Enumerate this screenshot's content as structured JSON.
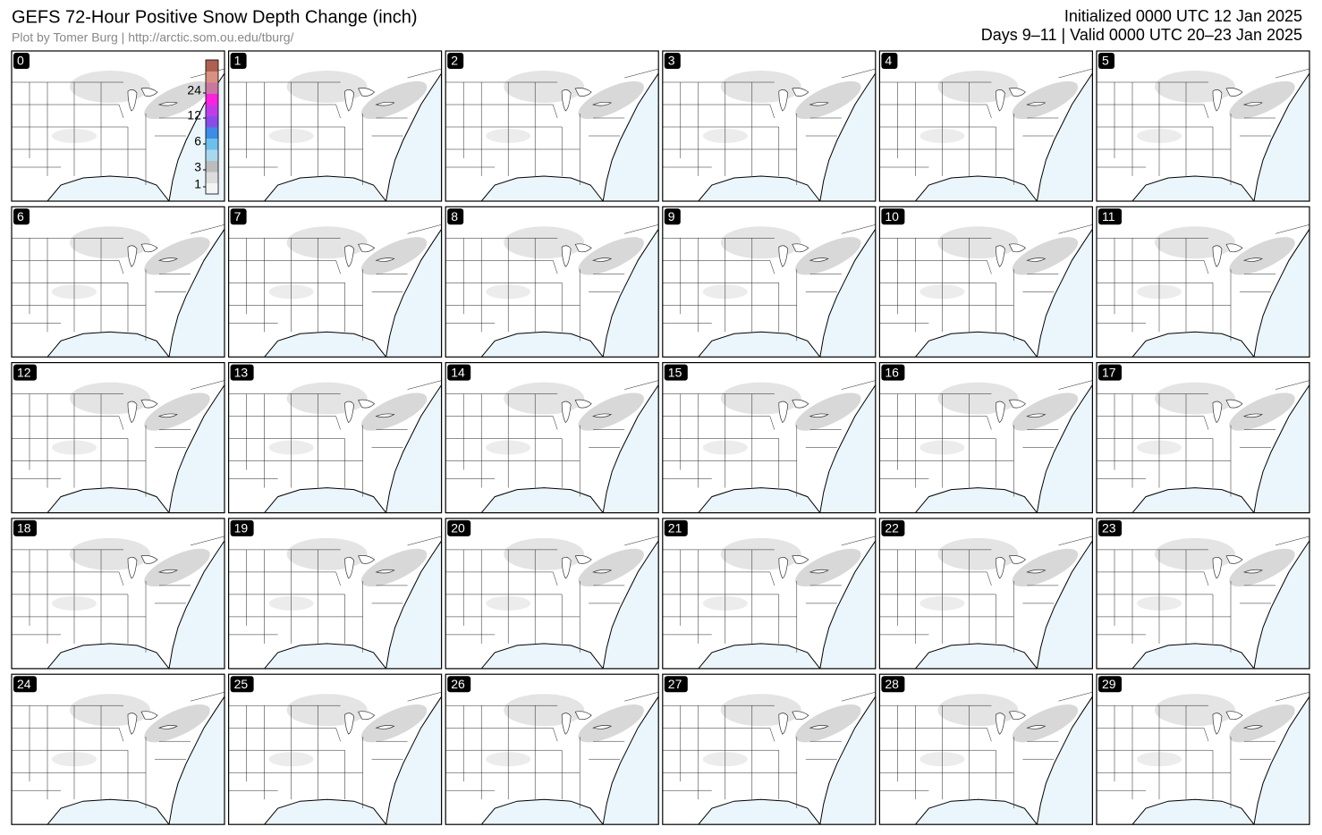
{
  "header": {
    "title": "GEFS 72-Hour Positive Snow Depth Change (inch)",
    "credit": "Plot by Tomer Burg | http://arctic.som.ou.edu/tburg/",
    "initialized": "Initialized 0000 UTC 12 Jan 2025",
    "valid": "Days 9–11 | Valid 0000 UTC 20–23 Jan 2025"
  },
  "panels": [
    "0",
    "1",
    "2",
    "3",
    "4",
    "5",
    "6",
    "7",
    "8",
    "9",
    "10",
    "11",
    "12",
    "13",
    "14",
    "15",
    "16",
    "17",
    "18",
    "19",
    "20",
    "21",
    "22",
    "23",
    "24",
    "25",
    "26",
    "27",
    "28",
    "29"
  ],
  "colorbar": {
    "ticks": [
      1,
      3,
      6,
      12,
      24
    ]
  }
}
